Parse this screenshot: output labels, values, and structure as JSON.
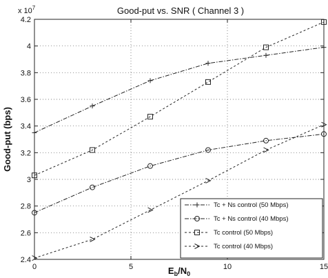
{
  "chart_data": {
    "type": "line",
    "title": "Good-put  vs.  SNR ( Channel 3 )",
    "ylabel": "Good-put (bps)",
    "xlabel": {
      "main": "E",
      "sub1": "b",
      "slash": "/N",
      "sub2": "0"
    },
    "y_scale_label": {
      "prefix": "x 10",
      "exponent": "7"
    },
    "xlim": [
      0,
      15
    ],
    "ylim": [
      2.4,
      4.2
    ],
    "x_ticks": [
      0,
      5,
      10,
      15
    ],
    "y_ticks": [
      2.4,
      2.6,
      2.8,
      3.0,
      3.2,
      3.4,
      3.6,
      3.8,
      4.0,
      4.2
    ],
    "x_tick_labels": [
      "0",
      "5",
      "10",
      "15"
    ],
    "y_tick_labels": [
      "2.4",
      "2.6",
      "2.8",
      "3",
      "3.2",
      "3.4",
      "3.6",
      "3.8",
      "4",
      "4.2"
    ],
    "grid": true,
    "legend_position": "bottom-right",
    "series": [
      {
        "name": "Tc + Ns  control (50 Mbps)",
        "marker": "plus",
        "dash": "6,2,1.5,2",
        "x": [
          0,
          3,
          6,
          9,
          12,
          15
        ],
        "y": [
          3.35,
          3.55,
          3.74,
          3.87,
          3.93,
          3.99
        ]
      },
      {
        "name": "Tc + Ns  control (40 Mbps)",
        "marker": "circle",
        "dash": "6,2,1.5,2",
        "x": [
          0,
          3,
          6,
          9,
          12,
          15
        ],
        "y": [
          2.75,
          2.94,
          3.1,
          3.22,
          3.29,
          3.34
        ]
      },
      {
        "name": "Tc  control (50 Mbps)",
        "marker": "square",
        "dash": "3,3",
        "x": [
          0,
          3,
          6,
          9,
          12,
          15
        ],
        "y": [
          3.03,
          3.22,
          3.47,
          3.73,
          3.99,
          4.18
        ]
      },
      {
        "name": "Tc  control (40 Mbps)",
        "marker": "triangle",
        "dash": "3,3",
        "x": [
          0,
          3,
          6,
          9,
          12,
          15
        ],
        "y": [
          2.41,
          2.55,
          2.77,
          2.99,
          3.22,
          3.41
        ]
      }
    ]
  }
}
